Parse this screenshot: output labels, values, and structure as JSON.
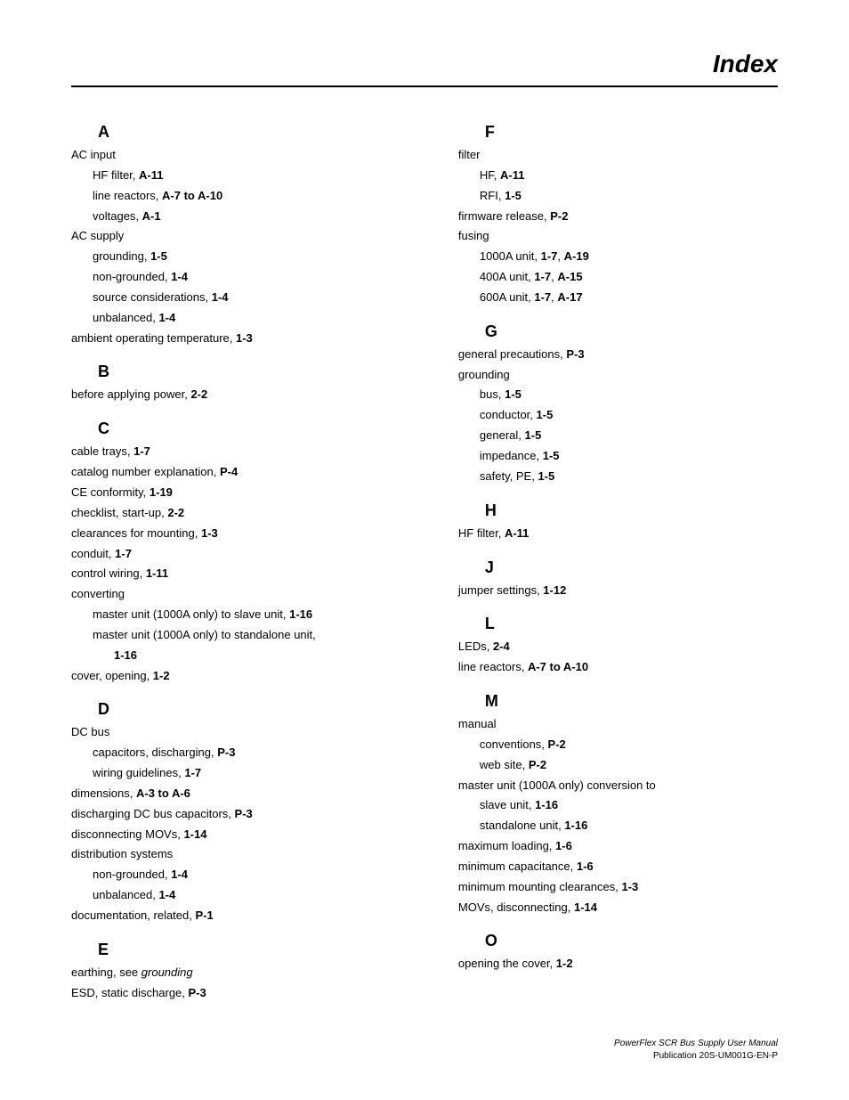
{
  "page": {
    "title": "Index",
    "footer_line1": "PowerFlex SCR Bus Supply User Manual",
    "footer_line2": "Publication 20S-UM001G-EN-P"
  },
  "left": {
    "A": {
      "letter": "A",
      "ac_input": "AC input",
      "hf_filter_t": "HF filter, ",
      "hf_filter_p": "A-11",
      "line_reactors_t": "line reactors, ",
      "line_reactors_p": "A-7 to A-10",
      "voltages_t": "voltages, ",
      "voltages_p": "A-1",
      "ac_supply": "AC supply",
      "grounding_t": "grounding, ",
      "grounding_p": "1-5",
      "nongrounded_t": "non-grounded, ",
      "nongrounded_p": "1-4",
      "source_t": "source considerations, ",
      "source_p": "1-4",
      "unbalanced_t": "unbalanced, ",
      "unbalanced_p": "1-4",
      "ambient_t": "ambient operating temperature, ",
      "ambient_p": "1-3"
    },
    "B": {
      "letter": "B",
      "before_t": "before applying power, ",
      "before_p": "2-2"
    },
    "C": {
      "letter": "C",
      "cable_trays_t": "cable trays, ",
      "cable_trays_p": "1-7",
      "catalog_t": "catalog number explanation, ",
      "catalog_p": "P-4",
      "ce_t": "CE conformity, ",
      "ce_p": "1-19",
      "checklist_t": "checklist, start-up, ",
      "checklist_p": "2-2",
      "clearances_t": "clearances for mounting, ",
      "clearances_p": "1-3",
      "conduit_t": "conduit, ",
      "conduit_p": "1-7",
      "control_t": "control wiring, ",
      "control_p": "1-11",
      "converting": "converting",
      "master_slave_t": "master unit (1000A only) to slave unit, ",
      "master_slave_p": "1-16",
      "master_standalone_t": "master unit (1000A only) to standalone unit, ",
      "master_standalone_p": "1-16",
      "cover_t": "cover, opening, ",
      "cover_p": "1-2"
    },
    "D": {
      "letter": "D",
      "dc_bus": "DC bus",
      "caps_t": "capacitors, discharging, ",
      "caps_p": "P-3",
      "wiring_t": "wiring guidelines, ",
      "wiring_p": "1-7",
      "dims_t": "dimensions, ",
      "dims_p": "A-3 to A-6",
      "discharge_t": "discharging DC bus capacitors, ",
      "discharge_p": "P-3",
      "disconnect_t": "disconnecting MOVs, ",
      "disconnect_p": "1-14",
      "dist": "distribution systems",
      "nongrounded_t": "non-grounded, ",
      "nongrounded_p": "1-4",
      "unbalanced_t": "unbalanced, ",
      "unbalanced_p": "1-4",
      "doc_t": "documentation, related, ",
      "doc_p": "P-1"
    },
    "E": {
      "letter": "E",
      "earthing_t": "earthing, see ",
      "earthing_i": "grounding",
      "esd_t": "ESD, static discharge, ",
      "esd_p": "P-3"
    }
  },
  "right": {
    "F": {
      "letter": "F",
      "filter": "filter",
      "hf_t": "HF, ",
      "hf_p": "A-11",
      "rfi_t": "RFI, ",
      "rfi_p": "1-5",
      "firmware_t": "firmware release, ",
      "firmware_p": "P-2",
      "fusing": "fusing",
      "f1000_t": "1000A unit, ",
      "f1000_p1": "1-7",
      "sep": ", ",
      "f1000_p2": "A-19",
      "f400_t": "400A unit, ",
      "f400_p1": "1-7",
      "f400_p2": "A-15",
      "f600_t": "600A unit, ",
      "f600_p1": "1-7",
      "f600_p2": "A-17"
    },
    "G": {
      "letter": "G",
      "general_prec_t": "general precautions, ",
      "general_prec_p": "P-3",
      "grounding": "grounding",
      "bus_t": "bus, ",
      "bus_p": "1-5",
      "conductor_t": "conductor, ",
      "conductor_p": "1-5",
      "general_t": "general, ",
      "general_p": "1-5",
      "impedance_t": "impedance, ",
      "impedance_p": "1-5",
      "safety_t": "safety, PE, ",
      "safety_p": "1-5"
    },
    "H": {
      "letter": "H",
      "hf_t": "HF filter, ",
      "hf_p": "A-11"
    },
    "J": {
      "letter": "J",
      "jumper_t": "jumper settings, ",
      "jumper_p": "1-12"
    },
    "L": {
      "letter": "L",
      "leds_t": "LEDs, ",
      "leds_p": "2-4",
      "lr_t": "line reactors, ",
      "lr_p": "A-7 to A-10"
    },
    "M": {
      "letter": "M",
      "manual": "manual",
      "conv_t": "conventions, ",
      "conv_p": "P-2",
      "web_t": "web site, ",
      "web_p": "P-2",
      "master": "master unit (1000A only) conversion to",
      "slave_t": "slave unit, ",
      "slave_p": "1-16",
      "standalone_t": "standalone unit, ",
      "standalone_p": "1-16",
      "maxload_t": "maximum loading, ",
      "maxload_p": "1-6",
      "mincap_t": "minimum capacitance, ",
      "mincap_p": "1-6",
      "minmount_t": "minimum mounting clearances, ",
      "minmount_p": "1-3",
      "movs_t": "MOVs, disconnecting, ",
      "movs_p": "1-14"
    },
    "O": {
      "letter": "O",
      "open_t": "opening the cover, ",
      "open_p": "1-2"
    }
  }
}
